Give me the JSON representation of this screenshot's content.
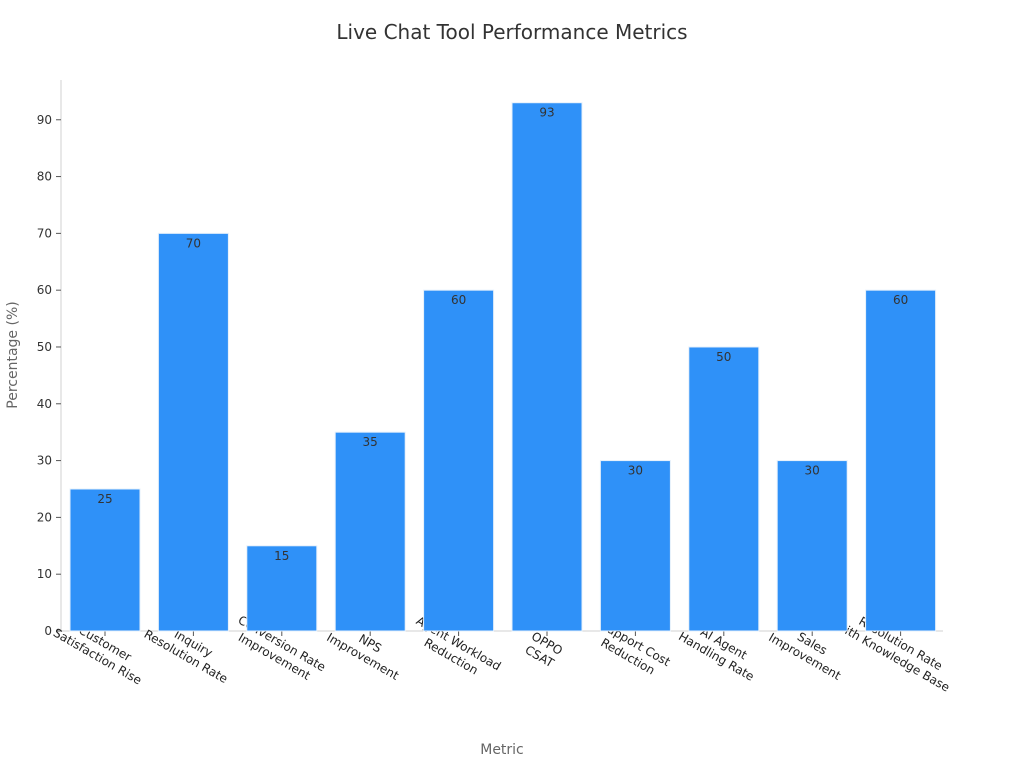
{
  "chart_data": {
    "type": "bar",
    "title": "Live Chat Tool Performance Metrics",
    "xlabel": "Metric",
    "ylabel": "Percentage (%)",
    "ylim": [
      0,
      97
    ],
    "yticks": [
      0,
      10,
      20,
      30,
      40,
      50,
      60,
      70,
      80,
      90
    ],
    "grid": false,
    "bar_color": "#2f91f8",
    "categories": [
      [
        "Customer",
        "Satisfaction Rise"
      ],
      [
        "Inquiry",
        "Resolution Rate"
      ],
      [
        "Conversion Rate",
        "Improvement"
      ],
      [
        "NPS",
        "Improvement"
      ],
      [
        "Agent Workload",
        "Reduction"
      ],
      [
        "OPPO",
        "CSAT"
      ],
      [
        "Support Cost",
        "Reduction"
      ],
      [
        "AI Agent",
        "Handling Rate"
      ],
      [
        "Sales",
        "Improvement"
      ],
      [
        "Resolution Rate",
        "with Knowledge Base"
      ]
    ],
    "values": [
      25,
      70,
      15,
      35,
      60,
      93,
      30,
      50,
      30,
      60
    ]
  }
}
